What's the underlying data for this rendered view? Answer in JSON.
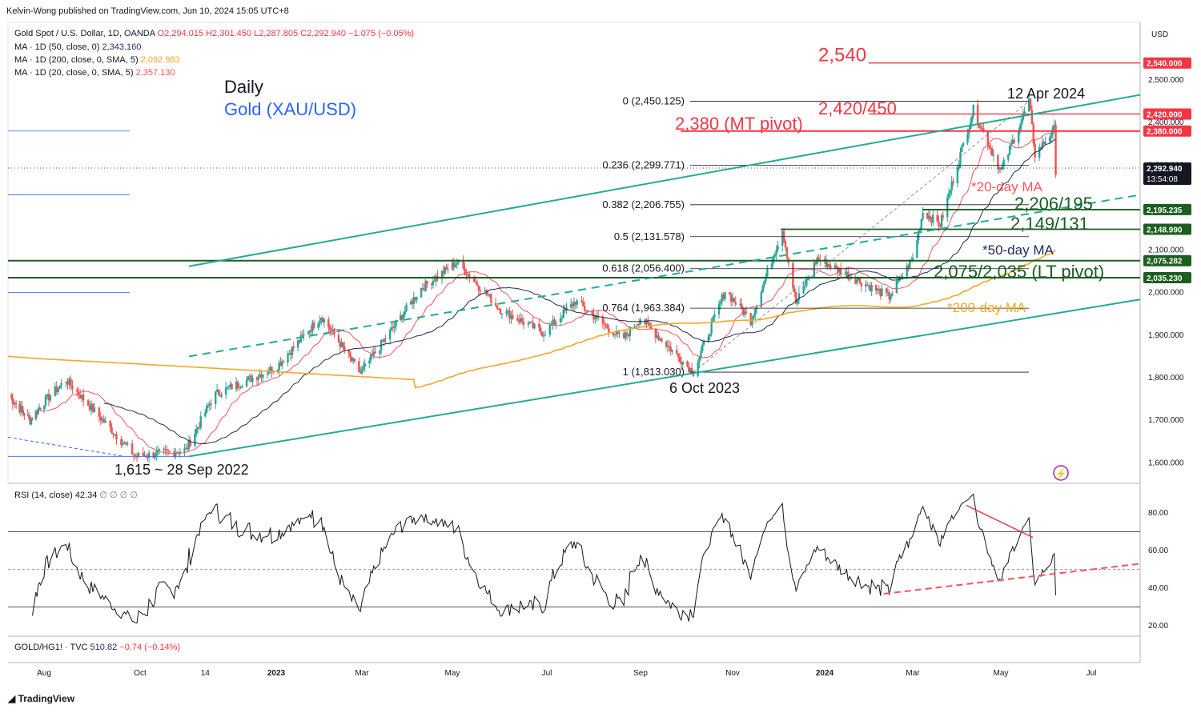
{
  "header": {
    "published": "Kelvin-Wong published on TradingView.com, Jun 10, 2024 15:05 UTC+8",
    "symbol": "Gold Spot / U.S. Dollar, 1D, OANDA",
    "ohlc": {
      "o": "O2,294.015",
      "h": "H2,301.450",
      "l": "L2,287.805",
      "c": "C2,292.940",
      "chg": "−1.075 (−0.05%)"
    },
    "ma50": {
      "label": "MA · 1D (50, close, 0)",
      "value": "2,343.160"
    },
    "ma200": {
      "label": "MA · 1D (200, close, 0, SMA, 5)",
      "value": "2,092.983"
    },
    "ma20": {
      "label": "MA · 1D (20, close, 0, SMA, 5)",
      "value": "2,357.130"
    }
  },
  "title": {
    "line1": "Daily",
    "line2": "Gold (XAU/USD)"
  },
  "currency": "USD",
  "footer": {
    "brand": "TradingView"
  },
  "colors": {
    "up": "#26a69a",
    "down": "#ef5350",
    "red": "#f23645",
    "teal": "#22ab94",
    "green": "#1b5e20",
    "ma20": "#f7525f",
    "ma50": "#1e2a5a",
    "ma200": "#f5a623",
    "fib": "#131722",
    "rsi": "#131722",
    "label_blue": "#2962ff"
  },
  "chart_data": {
    "type": "candlestick",
    "x_ticks": [
      "Aug",
      "Oct",
      "14",
      "2023",
      "Mar",
      "May",
      "Jul",
      "Sep",
      "Nov",
      "2024",
      "Mar",
      "May",
      "Jul"
    ],
    "y_ticks": [
      "2,500.000",
      "2,400.000",
      "2,300.000",
      "2,200.000",
      "2,100.000",
      "2,000.000",
      "1,900.000",
      "1,800.000",
      "1,700.000",
      "1,600.000"
    ],
    "ylim": [
      1560,
      2600
    ],
    "price_labels": [
      {
        "value": 2540,
        "text": "2,540.000",
        "color": "#f23645"
      },
      {
        "value": 2420,
        "text": "2,420.000",
        "color": "#f23645"
      },
      {
        "value": 2380,
        "text": "2,380.000",
        "color": "#f23645"
      },
      {
        "value": 2292.94,
        "text": "2,292.940",
        "sub": "13:54:08",
        "color": "#131722"
      },
      {
        "value": 2195.235,
        "text": "2,195.235",
        "color": "#1b5e20"
      },
      {
        "value": 2148.99,
        "text": "2,148.990",
        "color": "#1b5e20"
      },
      {
        "value": 2075.282,
        "text": "2,075.282",
        "color": "#1b5e20"
      },
      {
        "value": 2035.23,
        "text": "2,035.230",
        "color": "#1b5e20"
      }
    ],
    "fib_levels": [
      {
        "ratio": "0",
        "text": "0 (2,450.125)",
        "value": 2450.125
      },
      {
        "ratio": "0.236",
        "text": "0.236 (2,299.771)",
        "value": 2299.771
      },
      {
        "ratio": "0.382",
        "text": "0.382 (2,206.755)",
        "value": 2206.755
      },
      {
        "ratio": "0.5",
        "text": "0.5 (2,131.578)",
        "value": 2131.578
      },
      {
        "ratio": "0.618",
        "text": "0.618 (2,056.400)",
        "value": 2056.4
      },
      {
        "ratio": "0.764",
        "text": "0.764 (1,963.384)",
        "value": 1963.384
      },
      {
        "ratio": "1",
        "text": "1 (1,813.030)",
        "value": 1813.03
      }
    ],
    "annotations": [
      {
        "text": "2,540",
        "value": 2540,
        "color": "#f23645"
      },
      {
        "text": "2,420/450",
        "color": "#f23645"
      },
      {
        "text": "2,380 (MT pivot)",
        "color": "#f23645"
      },
      {
        "text": "12 Apr 2024",
        "color": "#131722"
      },
      {
        "text": "*20-day MA",
        "color": "#f7525f"
      },
      {
        "text": "2,206/195",
        "color": "#1b5e20"
      },
      {
        "text": "2,149/131",
        "color": "#1b5e20"
      },
      {
        "text": "*50-day MA",
        "color": "#1e2a5a"
      },
      {
        "text": "2,075/2,035 (LT pivot)",
        "color": "#1b5e20"
      },
      {
        "text": "*200-day MA",
        "color": "#f5a623"
      },
      {
        "text": "6 Oct 2023",
        "color": "#131722"
      },
      {
        "text": "1,615 ~ 28 Sep 2022",
        "color": "#131722"
      }
    ],
    "key_points": [
      {
        "date": "2022-09-28",
        "value": 1615
      },
      {
        "date": "2023-05-04",
        "value": 2072
      },
      {
        "date": "2023-10-06",
        "value": 1813.03
      },
      {
        "date": "2023-12-04",
        "value": 2148.99
      },
      {
        "date": "2024-04-12",
        "value": 2431
      },
      {
        "date": "2024-05-20",
        "value": 2450.125
      },
      {
        "date": "2024-06-07",
        "value": 2287.8
      }
    ],
    "rsi": {
      "label": "RSI (14, close)",
      "value": "42.34",
      "extras": "∅ ∅ ∅ ∅",
      "y_ticks": [
        "80.00",
        "60.00",
        "40.00",
        "20.00"
      ],
      "ylim": [
        15,
        90
      ],
      "bands": [
        70,
        30
      ],
      "mid": 50
    },
    "ratio_pane": {
      "label": "GOLD/HG1! · TVC",
      "value": "510.82",
      "chg": "−0.74 (−0.14%)"
    }
  }
}
